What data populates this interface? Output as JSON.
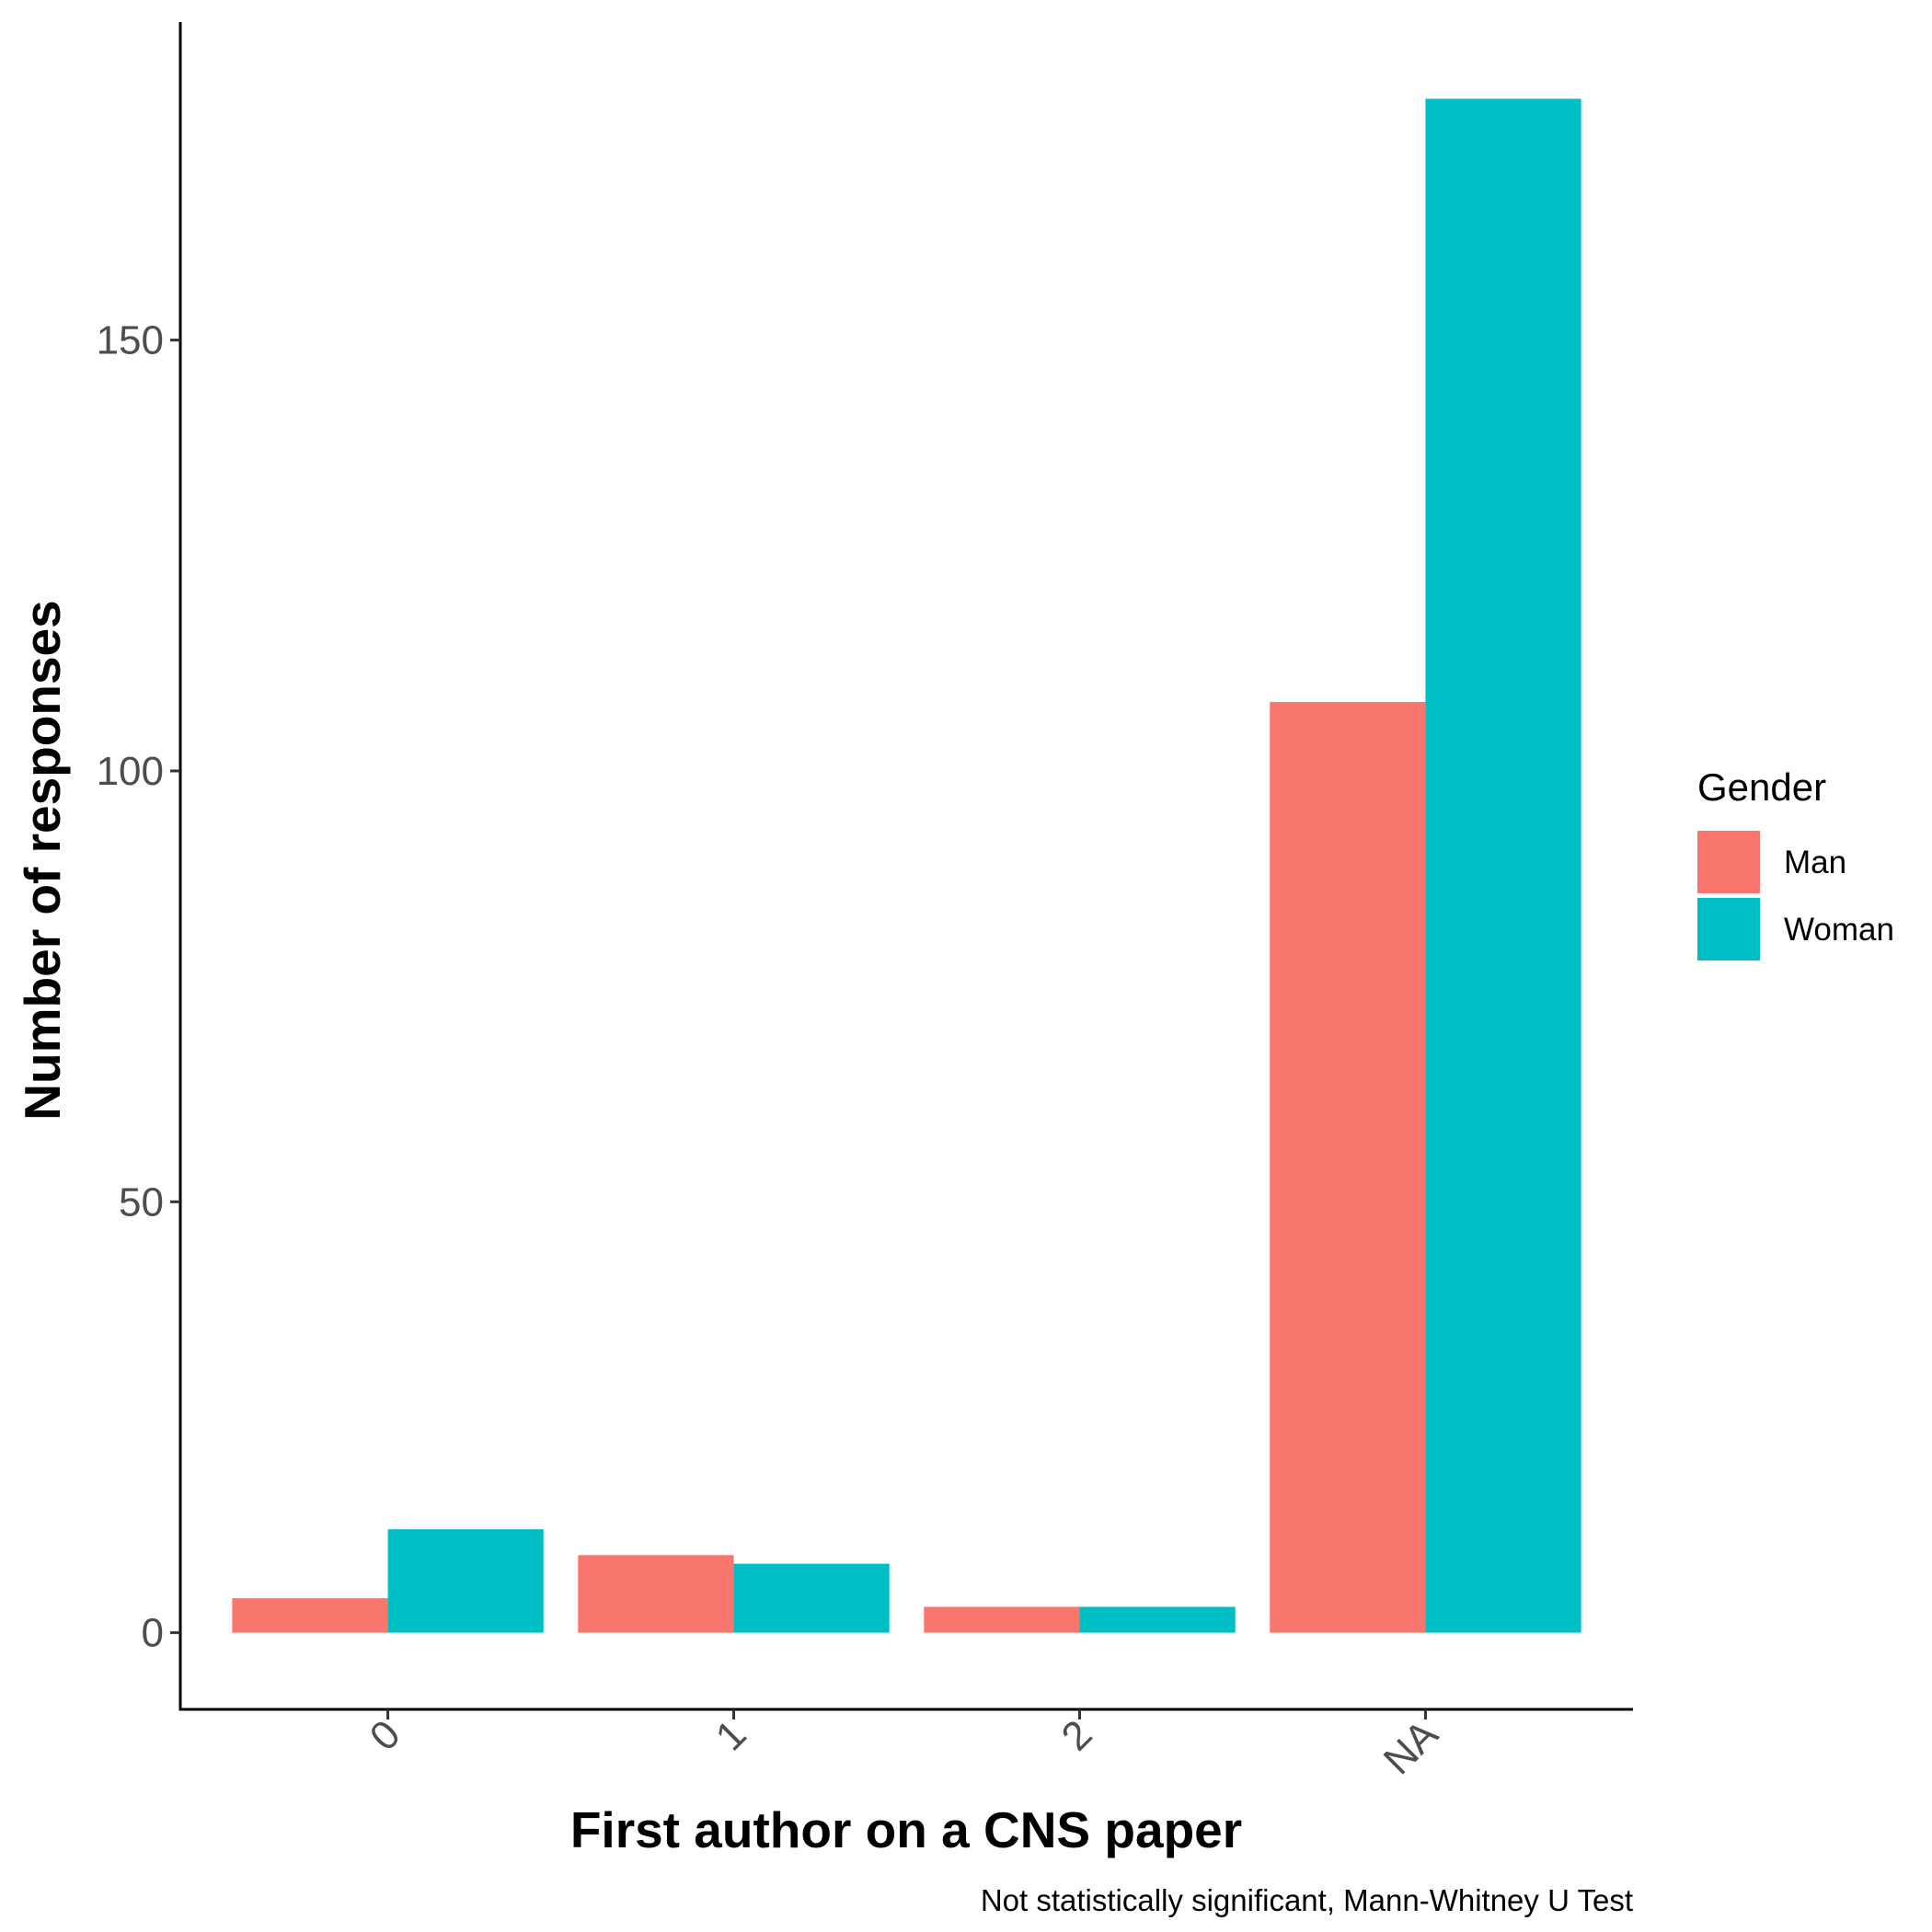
{
  "chart_data": {
    "type": "bar",
    "categories": [
      "0",
      "1",
      "2",
      "NA"
    ],
    "series": [
      {
        "name": "Man",
        "values": [
          4,
          9,
          3,
          108
        ],
        "color": "#F8766D"
      },
      {
        "name": "Woman",
        "values": [
          12,
          8,
          3,
          178
        ],
        "color": "#00BFC4"
      }
    ],
    "xlabel": "First author on a CNS paper",
    "ylabel": "Number of responses",
    "yticks": [
      0,
      50,
      100,
      150
    ],
    "ylim": [
      -8.9,
      186.9
    ],
    "legend": {
      "title": "Gender",
      "position": "right"
    },
    "caption": "Not statistically significant, Mann-Whitney U Test",
    "grid": false
  }
}
